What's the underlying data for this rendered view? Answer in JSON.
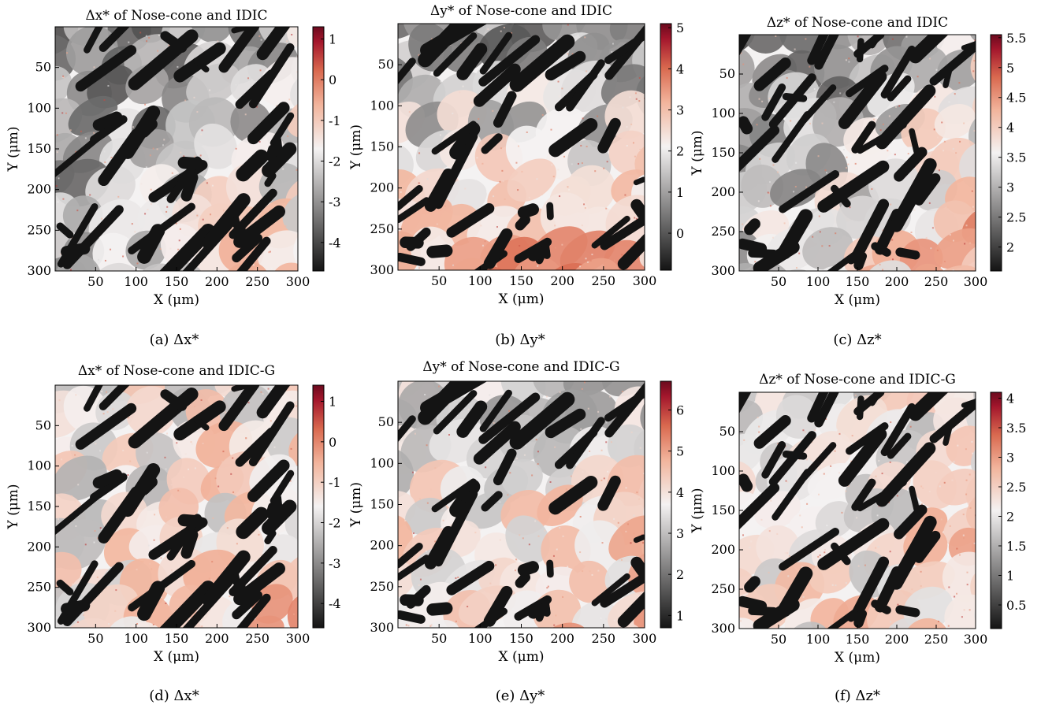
{
  "figure": {
    "background": "#ffffff"
  },
  "colormap": {
    "dark": "#141414",
    "mid": "#f4f2f2",
    "light_red": "#f2b49c",
    "red": "#d9694f",
    "deep_red": "#a3162c",
    "darkest_red": "#6b0a1e"
  },
  "chart_data": [
    {
      "type": "heatmap",
      "title": "Δx* of Nose-cone and IDIC",
      "caption": "(a) Δx*",
      "xlabel": "X (μm)",
      "ylabel": "Y (μm)",
      "xlim": [
        0,
        300
      ],
      "ylim": [
        300,
        0
      ],
      "xticks": [
        "50",
        "100",
        "150",
        "200",
        "250",
        "300"
      ],
      "yticks": [
        "50",
        "100",
        "150",
        "200",
        "250",
        "300"
      ],
      "colorbar": {
        "min": -4.7,
        "max": 1.3,
        "ticks": [
          "1",
          "0",
          "-1",
          "-2",
          "-3",
          "-4"
        ],
        "tick_values": [
          1,
          0,
          -1,
          -2,
          -3,
          -4
        ]
      },
      "pattern": {
        "seed": 11,
        "shade_tl": 0.2,
        "shade_br": 0.6,
        "gradient": "diag"
      }
    },
    {
      "type": "heatmap",
      "title": "Δy* of Nose-cone and IDIC",
      "caption": "(b) Δy*",
      "xlabel": "X (μm)",
      "ylabel": "Y (μm)",
      "xlim": [
        0,
        300
      ],
      "ylim": [
        300,
        0
      ],
      "xticks": [
        "50",
        "100",
        "150",
        "200",
        "250",
        "300"
      ],
      "yticks": [
        "50",
        "100",
        "150",
        "200",
        "250",
        "300"
      ],
      "colorbar": {
        "min": -0.9,
        "max": 5.1,
        "ticks": [
          "5",
          "4",
          "3",
          "2",
          "1",
          "0"
        ],
        "tick_values": [
          5,
          4,
          3,
          2,
          1,
          0
        ]
      },
      "pattern": {
        "seed": 23,
        "shade_tl": 0.25,
        "shade_br": 0.72,
        "gradient": "vertical"
      }
    },
    {
      "type": "heatmap",
      "title": "Δz* of Nose-cone and IDIC",
      "caption": "(c) Δz*",
      "xlabel": "X (μm)",
      "ylabel": "Y (μm)",
      "xlim": [
        0,
        300
      ],
      "ylim": [
        300,
        0
      ],
      "xticks": [
        "50",
        "100",
        "150",
        "200",
        "250",
        "300"
      ],
      "yticks": [
        "50",
        "100",
        "150",
        "200",
        "250",
        "300"
      ],
      "colorbar": {
        "min": 1.6,
        "max": 5.55,
        "ticks": [
          "5.5",
          "5",
          "4.5",
          "4",
          "3.5",
          "3",
          "2.5",
          "2"
        ],
        "tick_values": [
          5.5,
          5,
          4.5,
          4,
          3.5,
          3,
          2.5,
          2
        ]
      },
      "pattern": {
        "seed": 37,
        "shade_tl": 0.15,
        "shade_br": 0.7,
        "gradient": "diag"
      }
    },
    {
      "type": "heatmap",
      "title": "Δx* of Nose-cone and IDIC-G",
      "caption": "(d) Δx*",
      "xlabel": "X (μm)",
      "ylabel": "Y (μm)",
      "xlim": [
        0,
        300
      ],
      "ylim": [
        300,
        0
      ],
      "xticks": [
        "50",
        "100",
        "150",
        "200",
        "250",
        "300"
      ],
      "yticks": [
        "50",
        "100",
        "150",
        "200",
        "250",
        "300"
      ],
      "colorbar": {
        "min": -4.6,
        "max": 1.4,
        "ticks": [
          "1",
          "0",
          "-1",
          "-2",
          "-3",
          "-4"
        ],
        "tick_values": [
          1,
          0,
          -1,
          -2,
          -3,
          -4
        ]
      },
      "pattern": {
        "seed": 11,
        "shade_tl": 0.45,
        "shade_br": 0.62,
        "gradient": "diag"
      }
    },
    {
      "type": "heatmap",
      "title": "Δy* of Nose-cone and IDIC-G",
      "caption": "(e) Δy*",
      "xlabel": "X (μm)",
      "ylabel": "Y (μm)",
      "xlim": [
        0,
        300
      ],
      "ylim": [
        300,
        0
      ],
      "xticks": [
        "50",
        "100",
        "150",
        "200",
        "250",
        "300"
      ],
      "yticks": [
        "50",
        "100",
        "150",
        "200",
        "250",
        "300"
      ],
      "colorbar": {
        "min": 0.7,
        "max": 6.7,
        "ticks": [
          "6",
          "5",
          "4",
          "3",
          "2",
          "1"
        ],
        "tick_values": [
          6,
          5,
          4,
          3,
          2,
          1
        ]
      },
      "pattern": {
        "seed": 23,
        "shade_tl": 0.4,
        "shade_br": 0.65,
        "gradient": "vertical"
      }
    },
    {
      "type": "heatmap",
      "title": "Δz* of Nose-cone and IDIC-G",
      "caption": "(f) Δz*",
      "xlabel": "X (μm)",
      "ylabel": "Y (μm)",
      "xlim": [
        0,
        300
      ],
      "ylim": [
        300,
        0
      ],
      "xticks": [
        "50",
        "100",
        "150",
        "200",
        "250",
        "300"
      ],
      "yticks": [
        "50",
        "100",
        "150",
        "200",
        "250",
        "300"
      ],
      "colorbar": {
        "min": 0.1,
        "max": 4.1,
        "ticks": [
          "4",
          "3.5",
          "3",
          "2.5",
          "2",
          "1.5",
          "1",
          "0.5"
        ],
        "tick_values": [
          4,
          3.5,
          3,
          2.5,
          2,
          1.5,
          1,
          0.5
        ]
      },
      "pattern": {
        "seed": 37,
        "shade_tl": 0.42,
        "shade_br": 0.62,
        "gradient": "diag"
      }
    }
  ]
}
